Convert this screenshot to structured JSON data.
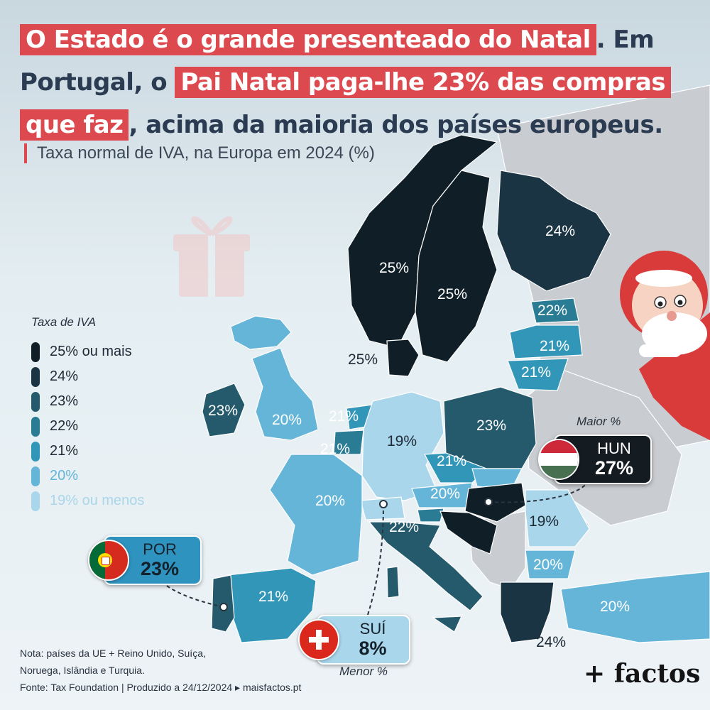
{
  "headline": {
    "part1": "O Estado é o grande presenteado do Natal",
    "part2": ". Em Portugal, o ",
    "part3": "Pai Natal paga-lhe 23% das compras que faz",
    "part4": ", acima da maioria dos países europeus."
  },
  "subtitle": "Taxa normal de IVA, na Europa em 2024 (%)",
  "legend": {
    "title": "Taxa de IVA",
    "items": [
      {
        "label": "25% ou mais",
        "color": "#0f1e27"
      },
      {
        "label": "24%",
        "color": "#1a3444"
      },
      {
        "label": "23%",
        "color": "#245a6b"
      },
      {
        "label": "22%",
        "color": "#2a7b94"
      },
      {
        "label": "21%",
        "color": "#3296b8"
      },
      {
        "label": "20%",
        "color": "#64b5d8"
      },
      {
        "label": "19% ou menos",
        "color": "#a9d6ea"
      }
    ]
  },
  "map_labels": {
    "norway": "25%",
    "sweden": "25%",
    "finland": "24%",
    "denmark": "25%",
    "estonia": "22%",
    "latvia": "21%",
    "lithuania": "21%",
    "ireland": "23%",
    "uk": "20%",
    "netherlands": "21%",
    "belgium": "21%",
    "germany": "19%",
    "poland": "23%",
    "czechia": "21%",
    "austria": "20%",
    "france": "20%",
    "italy": "22%",
    "romania": "19%",
    "bulgaria": "20%",
    "spain": "21%",
    "turkey": "20%",
    "greece": "24%"
  },
  "callouts": {
    "max": {
      "caption": "Maior %",
      "code": "HUN",
      "value": "27%"
    },
    "min": {
      "caption": "Menor %",
      "code": "SUÍ",
      "value": "8%"
    },
    "portugal": {
      "code": "POR",
      "value": "23%"
    }
  },
  "footer": {
    "note_line1": "Nota: países da UE + Reino Unido, Suíça,",
    "note_line2": "Noruega, Islândia e Turquia.",
    "source": "Fonte: Tax Foundation | Produzido a 24/12/2024 ▸ maisfactos.pt",
    "logo": "+ factos"
  }
}
